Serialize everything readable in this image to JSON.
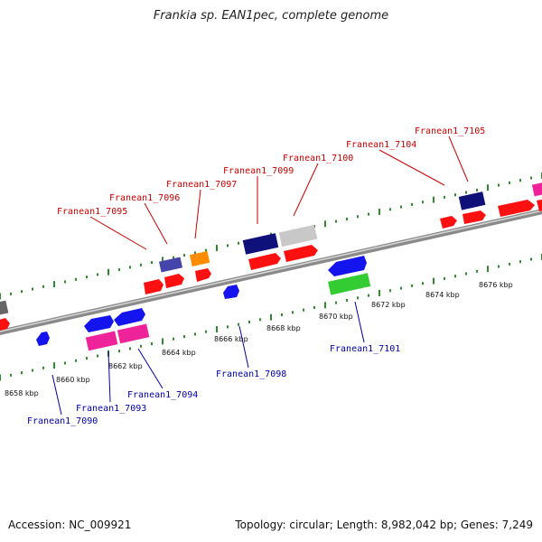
{
  "title": "Frankia sp. EAN1pec, complete genome",
  "accession": "Accession: NC_009921",
  "topology": "Topology: circular; Length: 8,982,042 bp; Genes: 7,249",
  "colors": {
    "red": "#ff1010",
    "blue": "#1414ee",
    "navy": "#10107a",
    "pink": "#ee2299",
    "green": "#33cc33",
    "orange": "#ff8c00",
    "gray": "#bdbdbd",
    "darkgray": "#666666",
    "tick": "#2e8b2e",
    "label_top": "#cc0000",
    "label_bottom": "#0000aa"
  },
  "axis_ticks": [
    {
      "label": "8658 kbp"
    },
    {
      "label": "8660 kbp"
    },
    {
      "label": "8662 kbp"
    },
    {
      "label": "8664 kbp"
    },
    {
      "label": "8666 kbp"
    },
    {
      "label": "8668 kbp"
    },
    {
      "label": "8670 kbp"
    },
    {
      "label": "8672 kbp"
    },
    {
      "label": "8674 kbp"
    },
    {
      "label": "8676 kbp"
    }
  ],
  "top_labels": [
    {
      "text": "Franean1_7095"
    },
    {
      "text": "Franean1_7096"
    },
    {
      "text": "Franean1_7097"
    },
    {
      "text": "Franean1_7099"
    },
    {
      "text": "Franean1_7100"
    },
    {
      "text": "Franean1_7104"
    },
    {
      "text": "Franean1_7105"
    }
  ],
  "bottom_labels": [
    {
      "text": "Franean1_7090"
    },
    {
      "text": "Franean1_7093"
    },
    {
      "text": "Franean1_7094"
    },
    {
      "text": "Franean1_7098"
    },
    {
      "text": "Franean1_7101"
    }
  ]
}
